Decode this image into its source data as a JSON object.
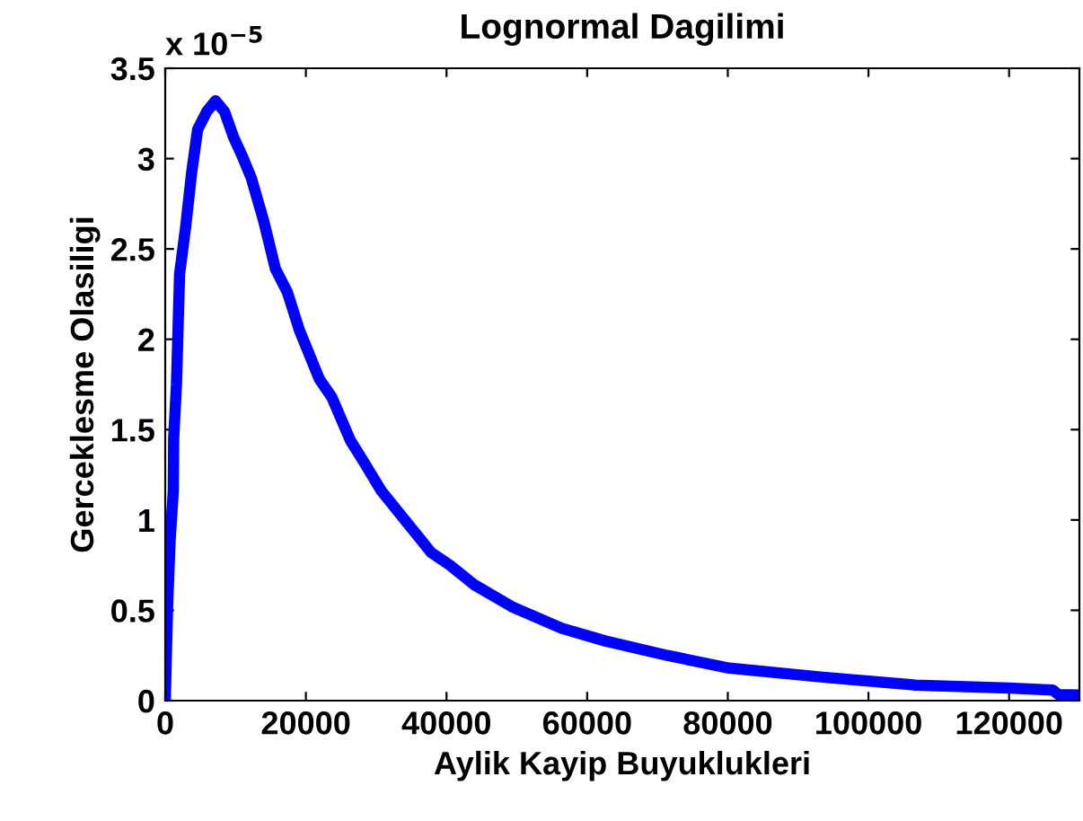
{
  "chart_data": {
    "type": "line",
    "title": "Lognormal Dagilimi",
    "xlabel": "Aylik Kayip Buyuklukleri",
    "ylabel": "Gerceklesme Olasiligi",
    "annotations": [
      "x 10$^{−5}$"
    ],
    "x": [
      0,
      350,
      700,
      1150,
      1200,
      1600,
      2040,
      2900,
      3750,
      4600,
      5900,
      7150,
      8430,
      9700,
      11000,
      12260,
      13970,
      15670,
      17370,
      19080,
      21910,
      23680,
      26330,
      28100,
      30750,
      34280,
      37820,
      40470,
      44000,
      49300,
      56400,
      62600,
      71400,
      80200,
      93500,
      106700,
      120000,
      126200,
      127000,
      130000
    ],
    "series": [
      {
        "color": "#0000ff",
        "values": [
          0,
          0.54,
          0.89,
          1.16,
          1.45,
          1.75,
          2.36,
          2.62,
          2.92,
          3.16,
          3.26,
          3.32,
          3.26,
          3.12,
          3.01,
          2.89,
          2.66,
          2.39,
          2.26,
          2.05,
          1.78,
          1.68,
          1.44,
          1.33,
          1.16,
          0.99,
          0.82,
          0.75,
          0.64,
          0.52,
          0.4,
          0.33,
          0.25,
          0.18,
          0.13,
          0.086,
          0.069,
          0.059,
          0.034,
          0.031
        ]
      }
    ],
    "xlim": [
      0,
      130000
    ],
    "xticks": [
      0,
      20000,
      40000,
      60000,
      80000,
      100000,
      120000
    ],
    "ylim": [
      0,
      3.5
    ],
    "yticks": [
      0,
      0.5,
      1,
      1.5,
      2,
      2.5,
      3,
      3.5
    ],
    "grid": false,
    "legend": false,
    "marker": "none",
    "line_style": "solid"
  }
}
